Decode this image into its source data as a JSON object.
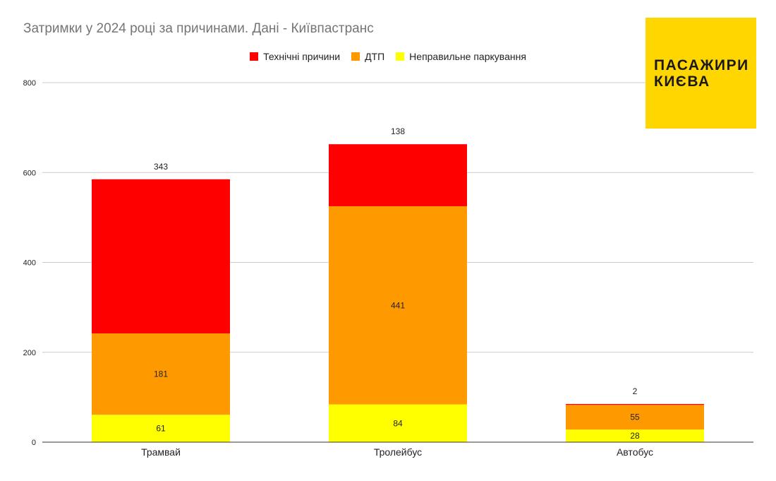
{
  "colors": {
    "tech": "#ff0000",
    "dtp": "#ff9900",
    "parking": "#ffff00",
    "logo_bg": "#ffd600",
    "grid": "#cccccc",
    "axis": "#333333"
  },
  "logo": {
    "line1": "ПАСАЖИРИ",
    "line2": "КИЄВА"
  },
  "chart_data": {
    "type": "bar",
    "stacked": true,
    "title": "Затримки у 2024 році за причинами. Дані - Київпастранс",
    "xlabel": "",
    "ylabel": "",
    "categories": [
      "Трамвай",
      "Тролейбус",
      "Автобус"
    ],
    "series": [
      {
        "name": "Неправильне паркування",
        "values": [
          61,
          84,
          28
        ],
        "color": "#ffff00"
      },
      {
        "name": "ДТП",
        "values": [
          181,
          441,
          55
        ],
        "color": "#ff9900"
      },
      {
        "name": "Технічні причини",
        "values": [
          343,
          138,
          2
        ],
        "color": "#ff0000"
      }
    ],
    "legend_order": [
      "Технічні причини",
      "ДТП",
      "Неправильне паркування"
    ],
    "legend_colors": [
      "#ff0000",
      "#ff9900",
      "#ffff00"
    ],
    "ylim": [
      0,
      800
    ],
    "yticks": [
      0,
      200,
      400,
      600,
      800
    ],
    "grid": true,
    "legend_position": "top"
  }
}
